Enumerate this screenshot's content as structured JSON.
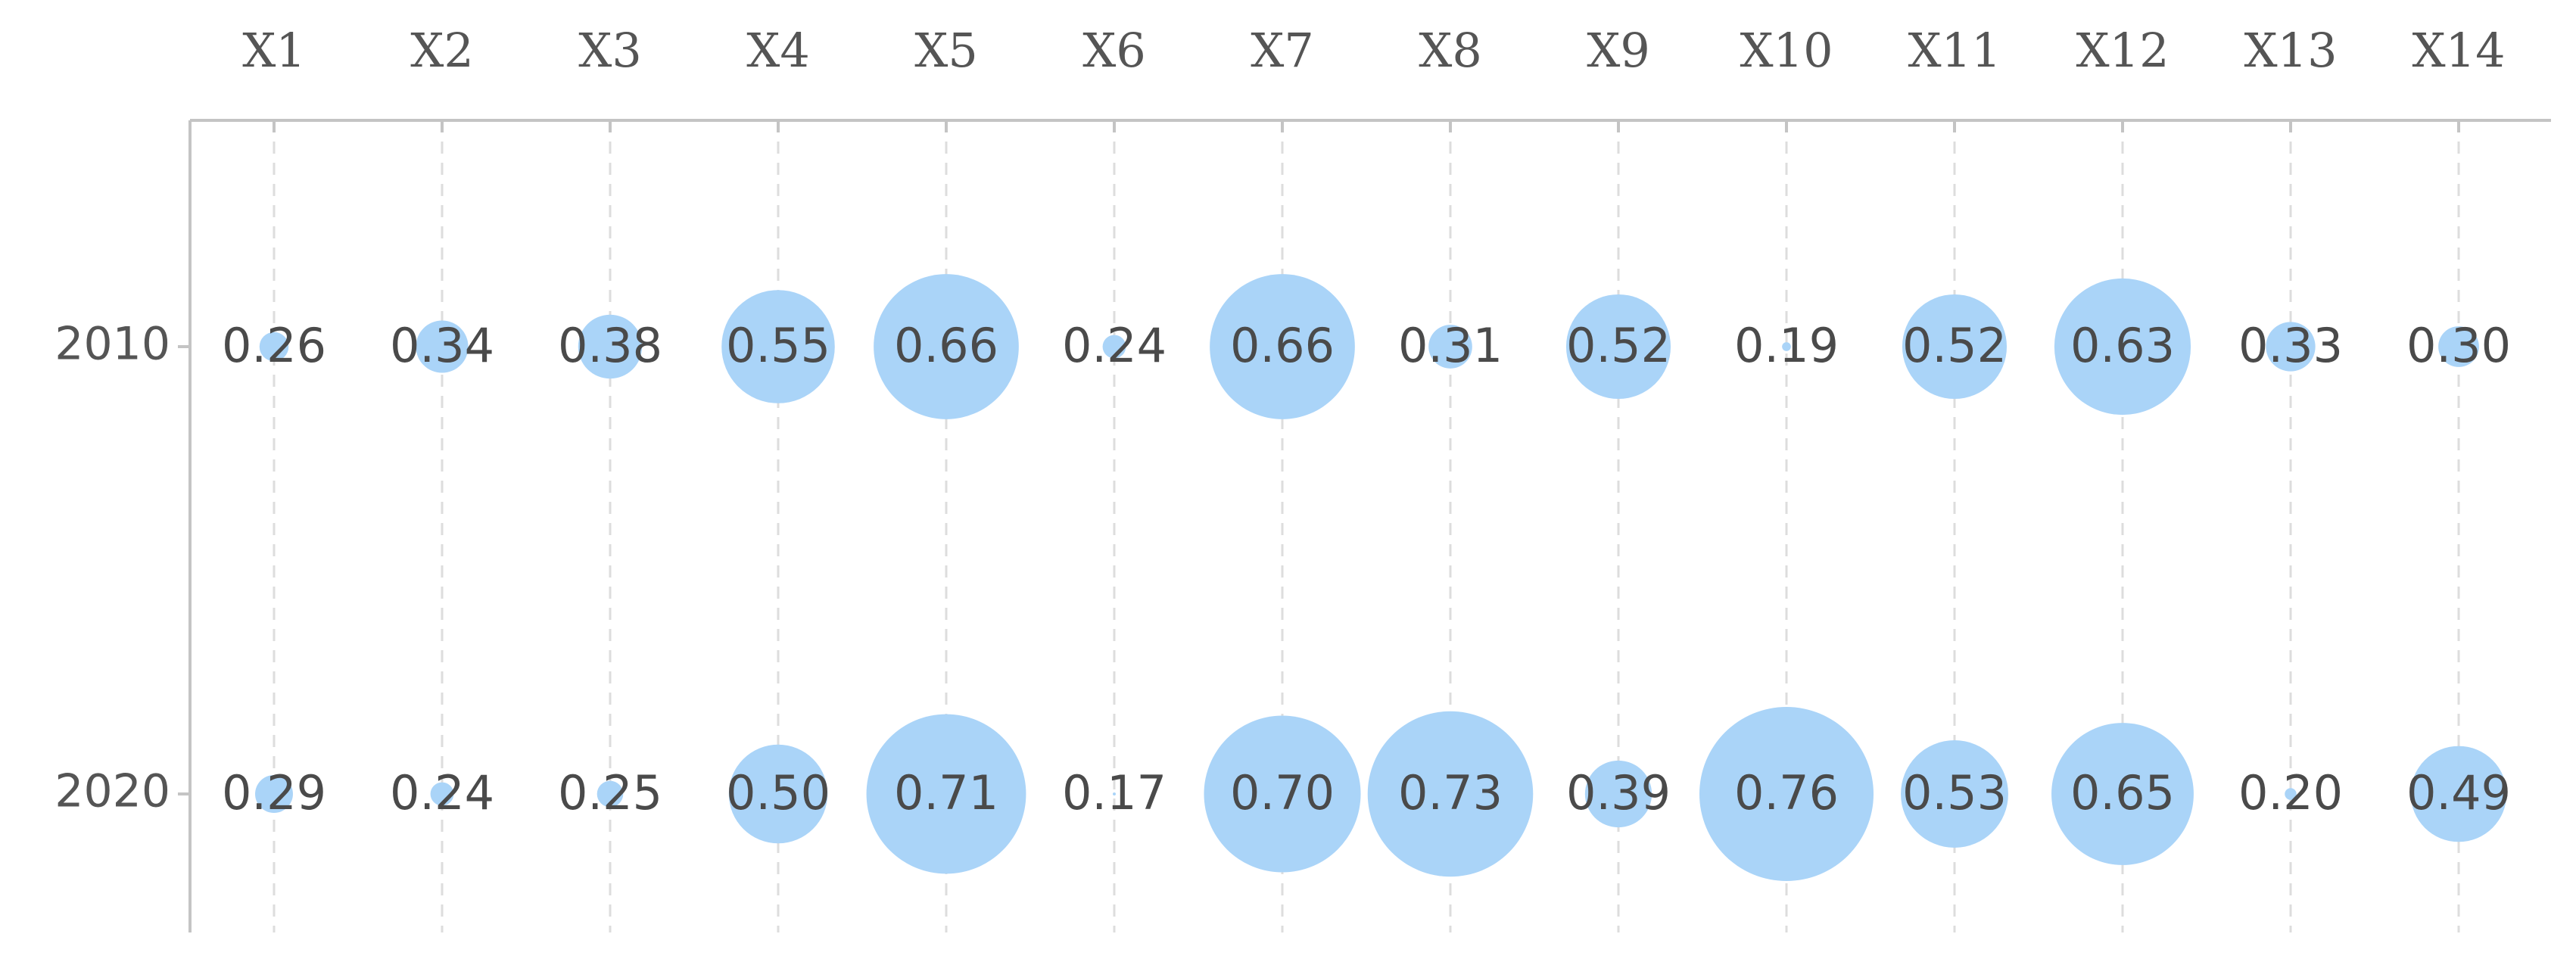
{
  "chart_data": {
    "type": "bubble",
    "categories": [
      "X1",
      "X2",
      "X3",
      "X4",
      "X5",
      "X6",
      "X7",
      "X8",
      "X9",
      "X10",
      "X11",
      "X12",
      "X13",
      "X14"
    ],
    "series": [
      {
        "name": "2010",
        "color": "#aad4f8",
        "values": [
          0.26,
          0.34,
          0.38,
          0.55,
          0.66,
          0.24,
          0.66,
          0.31,
          0.52,
          0.19,
          0.52,
          0.63,
          0.33,
          0.3
        ],
        "value_labels": [
          "0.26",
          "0.34",
          "0.38",
          "0.55",
          "0.66",
          "0.24",
          "0.66",
          "0.31",
          "0.52",
          "0.19",
          "0.52",
          "0.63",
          "0.33",
          "0.30"
        ]
      },
      {
        "name": "2020",
        "color": "#aad4f8",
        "values": [
          0.29,
          0.24,
          0.25,
          0.5,
          0.71,
          0.17,
          0.7,
          0.73,
          0.39,
          0.76,
          0.53,
          0.65,
          0.2,
          0.49
        ],
        "value_labels": [
          "0.29",
          "0.24",
          "0.25",
          "0.50",
          "0.71",
          "0.17",
          "0.70",
          "0.73",
          "0.39",
          "0.76",
          "0.53",
          "0.65",
          "0.20",
          "0.49"
        ]
      }
    ],
    "grid": true
  }
}
